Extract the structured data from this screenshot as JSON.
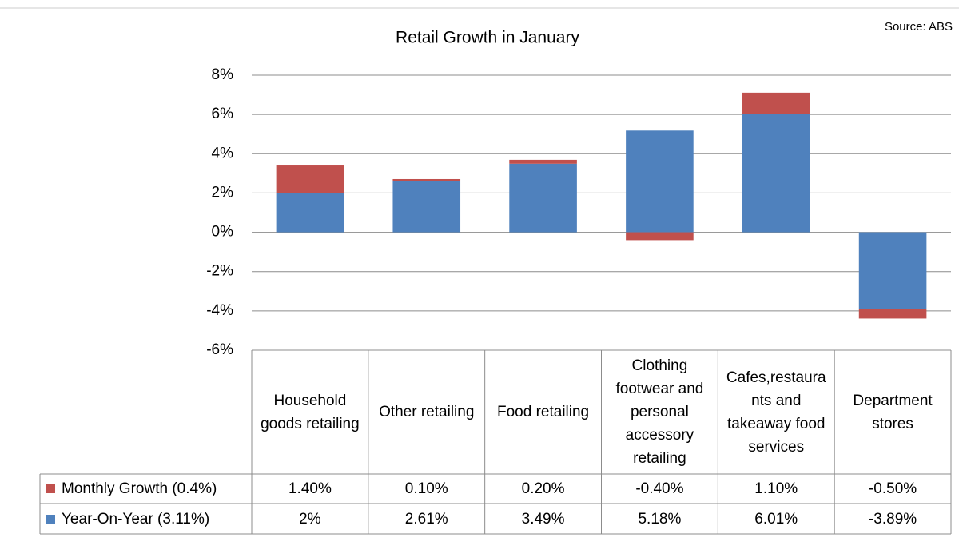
{
  "chart_data": {
    "type": "stacked-bar",
    "title": "Retail Growth in January",
    "source": "Source: ABS",
    "categories": [
      "Household goods retailing",
      "Other retailing",
      "Food retailing",
      "Clothing footwear and personal accessory retailing",
      "Cafes,restaurants and takeaway food services",
      "Department stores"
    ],
    "series": [
      {
        "name": "Monthly Growth (0.4%)",
        "color": "#c0504d",
        "values": [
          1.4,
          0.1,
          0.2,
          -0.4,
          1.1,
          -0.5
        ],
        "value_labels": [
          "1.40%",
          "0.10%",
          "0.20%",
          "-0.40%",
          "1.10%",
          "-0.50%"
        ]
      },
      {
        "name": "Year-On-Year (3.11%)",
        "color": "#4f81bd",
        "values": [
          2,
          2.61,
          3.49,
          5.18,
          6.01,
          -3.89
        ],
        "value_labels": [
          "2%",
          "2.61%",
          "3.49%",
          "5.18%",
          "6.01%",
          "-3.89%"
        ]
      }
    ],
    "ylim": [
      -6,
      8
    ],
    "yticks": [
      {
        "value": -6,
        "label": "-6%"
      },
      {
        "value": -4,
        "label": "-4%"
      },
      {
        "value": -2,
        "label": "-2%"
      },
      {
        "value": 0,
        "label": "0%"
      },
      {
        "value": 2,
        "label": "2%"
      },
      {
        "value": 4,
        "label": "4%"
      },
      {
        "value": 6,
        "label": "6%"
      },
      {
        "value": 8,
        "label": "8%"
      }
    ],
    "grid": true
  }
}
